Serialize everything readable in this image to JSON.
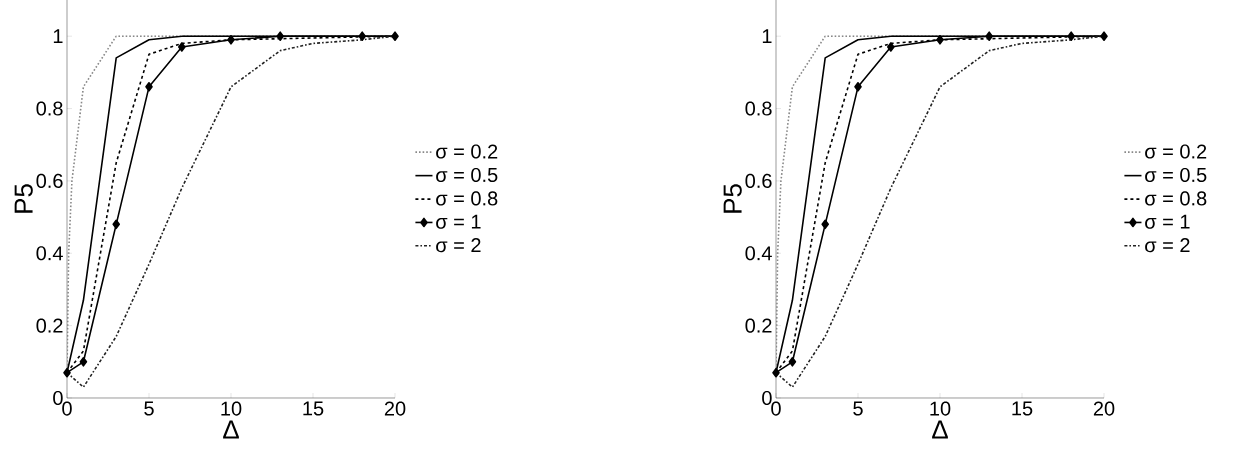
{
  "chart_data": [
    {
      "type": "line",
      "xlabel": "Δ",
      "ylabel": "P5",
      "xlim": [
        0,
        20
      ],
      "ylim": [
        0,
        1.1
      ],
      "xticks": [
        0,
        5,
        10,
        15,
        20
      ],
      "yticks": [
        0,
        0.2,
        0.4,
        0.6,
        0.8,
        1
      ],
      "legend": "right",
      "grid": false,
      "series": [
        {
          "name": "σ = 0.2",
          "color": "#888888",
          "line_style": "dotted",
          "marker": "none",
          "x": [
            0,
            0.1,
            0.3,
            1,
            3,
            20
          ],
          "values": [
            0.07,
            0.4,
            0.6,
            0.86,
            1,
            1
          ]
        },
        {
          "name": "σ = 0.5",
          "color": "#000000",
          "line_style": "solid",
          "marker": "none",
          "x": [
            0,
            1,
            3,
            5,
            7,
            20
          ],
          "values": [
            0.07,
            0.27,
            0.94,
            0.99,
            1,
            1
          ]
        },
        {
          "name": "σ = 0.8",
          "color": "#000000",
          "line_style": "dashed",
          "marker": "none",
          "x": [
            0,
            1,
            3,
            5,
            7,
            10,
            20
          ],
          "values": [
            0.07,
            0.13,
            0.65,
            0.95,
            0.98,
            0.99,
            1
          ]
        },
        {
          "name": "σ = 1",
          "color": "#000000",
          "line_style": "solid",
          "marker": "diamond",
          "x": [
            0,
            1,
            3,
            5,
            7,
            10,
            13,
            18,
            20
          ],
          "values": [
            0.07,
            0.1,
            0.48,
            0.86,
            0.97,
            0.99,
            1,
            1,
            1
          ]
        },
        {
          "name": "σ = 2",
          "color": "#222222",
          "line_style": "dashdot",
          "marker": "none",
          "x": [
            0,
            1,
            3,
            5,
            7,
            10,
            13,
            15,
            18,
            20
          ],
          "values": [
            0.07,
            0.03,
            0.17,
            0.37,
            0.58,
            0.86,
            0.96,
            0.98,
            0.99,
            1
          ]
        }
      ]
    },
    {
      "type": "line",
      "xlabel": "Δ",
      "ylabel": "P5",
      "xlim": [
        0,
        20
      ],
      "ylim": [
        0,
        1.1
      ],
      "xticks": [
        0,
        5,
        10,
        15,
        20
      ],
      "yticks": [
        0,
        0.2,
        0.4,
        0.6,
        0.8,
        1
      ],
      "legend": "right",
      "grid": false,
      "series": [
        {
          "name": "σ = 0.2",
          "color": "#888888",
          "line_style": "dotted",
          "marker": "none",
          "x": [
            0,
            0.1,
            0.3,
            1,
            3,
            20
          ],
          "values": [
            0.07,
            0.4,
            0.6,
            0.86,
            1,
            1
          ]
        },
        {
          "name": "σ = 0.5",
          "color": "#000000",
          "line_style": "solid",
          "marker": "none",
          "x": [
            0,
            1,
            3,
            5,
            7,
            20
          ],
          "values": [
            0.07,
            0.27,
            0.94,
            0.99,
            1,
            1
          ]
        },
        {
          "name": "σ = 0.8",
          "color": "#000000",
          "line_style": "dashed",
          "marker": "none",
          "x": [
            0,
            1,
            3,
            5,
            7,
            10,
            20
          ],
          "values": [
            0.07,
            0.13,
            0.65,
            0.95,
            0.98,
            0.99,
            1
          ]
        },
        {
          "name": "σ = 1",
          "color": "#000000",
          "line_style": "solid",
          "marker": "diamond",
          "x": [
            0,
            1,
            3,
            5,
            7,
            10,
            13,
            18,
            20
          ],
          "values": [
            0.07,
            0.1,
            0.48,
            0.86,
            0.97,
            0.99,
            1,
            1,
            1
          ]
        },
        {
          "name": "σ = 2",
          "color": "#222222",
          "line_style": "dashdot",
          "marker": "none",
          "x": [
            0,
            1,
            3,
            5,
            7,
            10,
            13,
            15,
            18,
            20
          ],
          "values": [
            0.07,
            0.03,
            0.17,
            0.37,
            0.58,
            0.86,
            0.96,
            0.98,
            0.99,
            1
          ]
        }
      ]
    }
  ]
}
